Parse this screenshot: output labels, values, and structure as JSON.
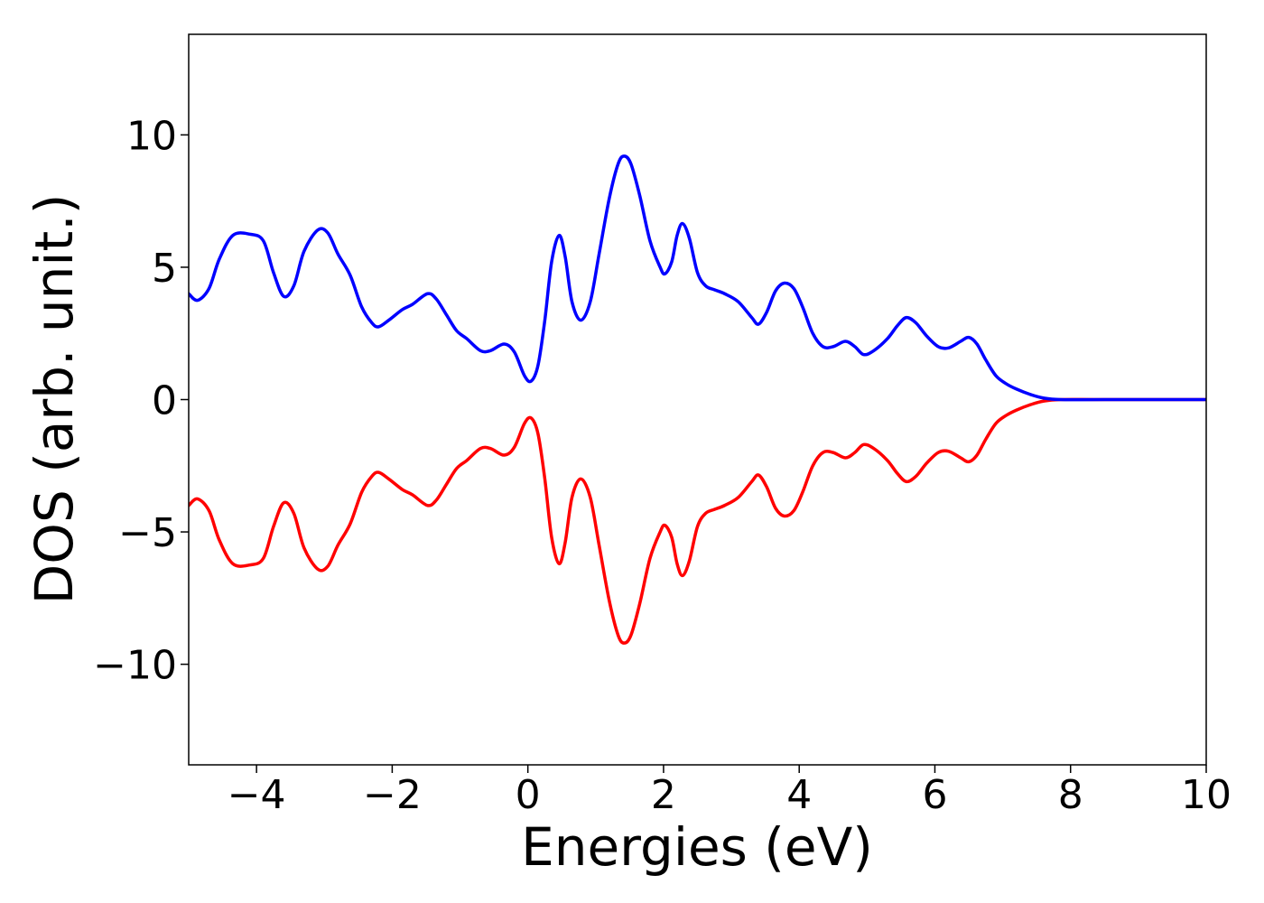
{
  "chart_data": {
    "type": "line",
    "xlabel": "Energies (eV)",
    "ylabel": "DOS (arb. unit.)",
    "xlim": [
      -5,
      10
    ],
    "ylim": [
      -13.8,
      13.8
    ],
    "xticks": [
      {
        "value": -4,
        "label": "−4"
      },
      {
        "value": -2,
        "label": "−2"
      },
      {
        "value": 0,
        "label": "0"
      },
      {
        "value": 2,
        "label": "2"
      },
      {
        "value": 4,
        "label": "4"
      },
      {
        "value": 6,
        "label": "6"
      },
      {
        "value": 8,
        "label": "8"
      },
      {
        "value": 10,
        "label": "10"
      }
    ],
    "yticks": [
      {
        "value": -10,
        "label": "−10"
      },
      {
        "value": -5,
        "label": "−5"
      },
      {
        "value": 0,
        "label": "0"
      },
      {
        "value": 5,
        "label": "5"
      },
      {
        "value": 10,
        "label": "10"
      }
    ],
    "grid": false,
    "series": [
      {
        "color": "#0000ff",
        "mirror": false,
        "points": [
          [
            -5.0,
            4.0
          ],
          [
            -4.87,
            3.75
          ],
          [
            -4.7,
            4.2
          ],
          [
            -4.55,
            5.3
          ],
          [
            -4.35,
            6.2
          ],
          [
            -4.1,
            6.25
          ],
          [
            -3.9,
            6.0
          ],
          [
            -3.75,
            4.8
          ],
          [
            -3.6,
            3.9
          ],
          [
            -3.45,
            4.3
          ],
          [
            -3.3,
            5.6
          ],
          [
            -3.1,
            6.4
          ],
          [
            -2.95,
            6.3
          ],
          [
            -2.8,
            5.5
          ],
          [
            -2.62,
            4.7
          ],
          [
            -2.45,
            3.5
          ],
          [
            -2.3,
            2.9
          ],
          [
            -2.2,
            2.75
          ],
          [
            -2.05,
            3.0
          ],
          [
            -1.85,
            3.4
          ],
          [
            -1.7,
            3.6
          ],
          [
            -1.48,
            4.0
          ],
          [
            -1.35,
            3.8
          ],
          [
            -1.2,
            3.2
          ],
          [
            -1.05,
            2.6
          ],
          [
            -0.9,
            2.3
          ],
          [
            -0.7,
            1.85
          ],
          [
            -0.55,
            1.85
          ],
          [
            -0.35,
            2.1
          ],
          [
            -0.2,
            1.8
          ],
          [
            -0.05,
            0.9
          ],
          [
            0.05,
            0.7
          ],
          [
            0.15,
            1.3
          ],
          [
            0.25,
            3.0
          ],
          [
            0.35,
            5.2
          ],
          [
            0.46,
            6.2
          ],
          [
            0.55,
            5.4
          ],
          [
            0.65,
            3.7
          ],
          [
            0.78,
            3.0
          ],
          [
            0.92,
            3.7
          ],
          [
            1.05,
            5.5
          ],
          [
            1.2,
            7.6
          ],
          [
            1.33,
            8.9
          ],
          [
            1.42,
            9.2
          ],
          [
            1.52,
            8.9
          ],
          [
            1.65,
            7.7
          ],
          [
            1.8,
            6.0
          ],
          [
            1.95,
            5.0
          ],
          [
            2.02,
            4.75
          ],
          [
            2.12,
            5.2
          ],
          [
            2.2,
            6.2
          ],
          [
            2.28,
            6.65
          ],
          [
            2.38,
            6.1
          ],
          [
            2.5,
            4.8
          ],
          [
            2.62,
            4.3
          ],
          [
            2.75,
            4.15
          ],
          [
            2.9,
            4.0
          ],
          [
            3.1,
            3.7
          ],
          [
            3.3,
            3.1
          ],
          [
            3.4,
            2.85
          ],
          [
            3.52,
            3.3
          ],
          [
            3.65,
            4.1
          ],
          [
            3.78,
            4.4
          ],
          [
            3.92,
            4.2
          ],
          [
            4.05,
            3.5
          ],
          [
            4.2,
            2.5
          ],
          [
            4.35,
            2.0
          ],
          [
            4.5,
            2.0
          ],
          [
            4.68,
            2.2
          ],
          [
            4.82,
            2.0
          ],
          [
            4.95,
            1.7
          ],
          [
            5.1,
            1.85
          ],
          [
            5.3,
            2.3
          ],
          [
            5.45,
            2.8
          ],
          [
            5.58,
            3.1
          ],
          [
            5.72,
            2.9
          ],
          [
            5.88,
            2.4
          ],
          [
            6.05,
            2.0
          ],
          [
            6.2,
            1.95
          ],
          [
            6.38,
            2.2
          ],
          [
            6.5,
            2.35
          ],
          [
            6.62,
            2.1
          ],
          [
            6.75,
            1.5
          ],
          [
            6.9,
            0.9
          ],
          [
            7.05,
            0.6
          ],
          [
            7.2,
            0.4
          ],
          [
            7.4,
            0.2
          ],
          [
            7.6,
            0.06
          ],
          [
            7.85,
            0.0
          ],
          [
            8.5,
            0.0
          ],
          [
            10.0,
            0.0
          ]
        ]
      },
      {
        "color": "#ff0000",
        "mirror": true
      }
    ]
  }
}
